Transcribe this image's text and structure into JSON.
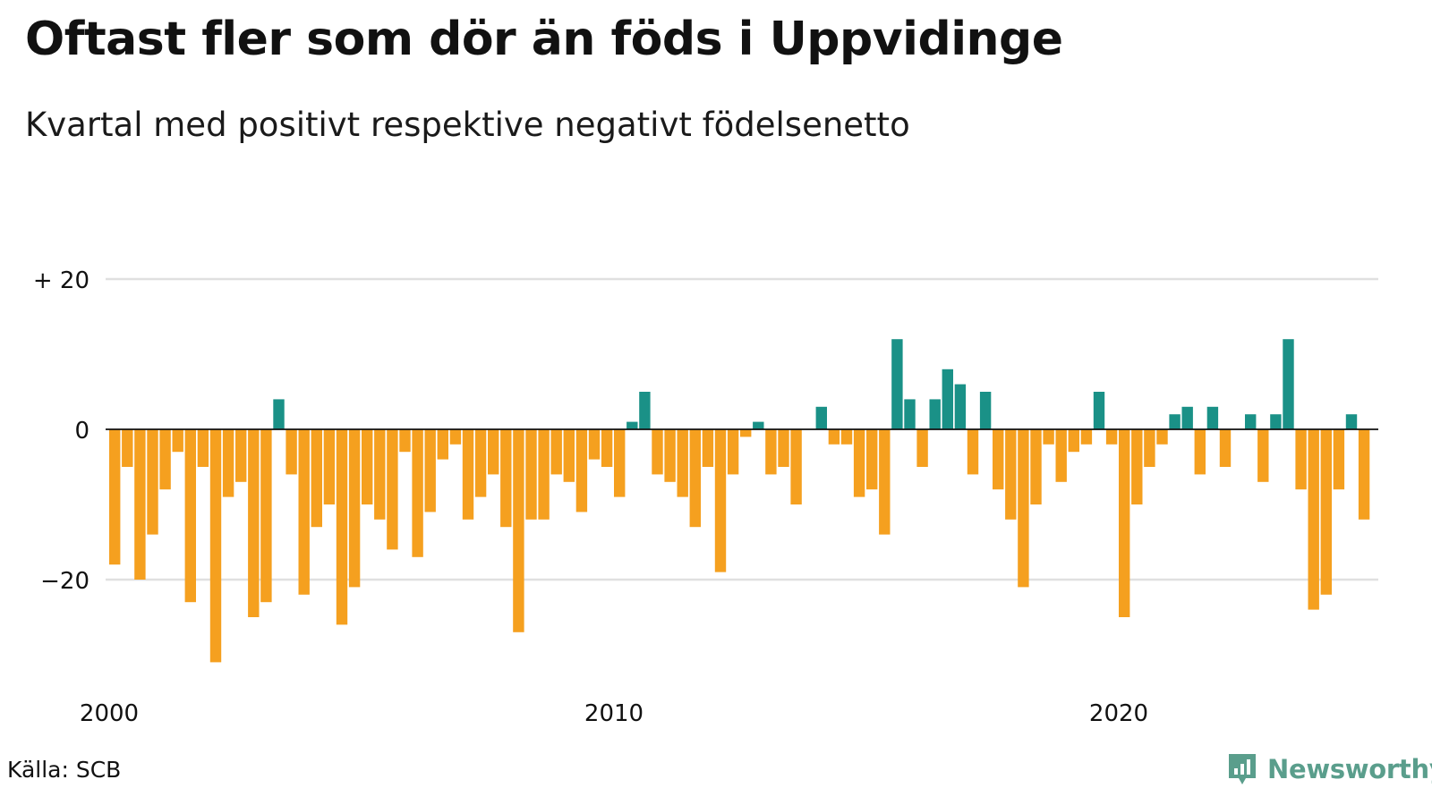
{
  "title": "Oftast fler som dör än föds i Uppvidinge",
  "subtitle": "Kvartal med positivt respektive negativt födelsenetto",
  "source": "Källa: SCB",
  "brand": "Newsworthy",
  "colors": {
    "positive": "#1a9187",
    "negative": "#f5a01f",
    "grid": "#e0e0e0",
    "zero": "#111111",
    "brand": "#5a9e8c"
  },
  "chart_data": {
    "type": "bar",
    "title": "Oftast fler som dör än föds i Uppvidinge",
    "subtitle": "Kvartal med positivt respektive negativt födelsenetto",
    "xlabel": "",
    "ylabel": "",
    "ylim": [
      -35,
      25
    ],
    "grid": true,
    "y_ticks": [
      {
        "value": 20,
        "label": "+ 20"
      },
      {
        "value": 0,
        "label": "0"
      },
      {
        "value": -20,
        "label": "−20"
      }
    ],
    "x_ticks": [
      {
        "value": 2000,
        "label": "2000"
      },
      {
        "value": 2010,
        "label": "2010"
      },
      {
        "value": 2020,
        "label": "2020"
      }
    ],
    "x_start": 2000,
    "periods_per_year": 4,
    "values": [
      -18,
      -5,
      -20,
      -14,
      -8,
      -3,
      -23,
      -5,
      -31,
      -9,
      -7,
      -25,
      -23,
      4,
      -6,
      -22,
      -13,
      -10,
      -26,
      -21,
      -10,
      -12,
      -16,
      -3,
      -17,
      -11,
      -4,
      -2,
      -12,
      -9,
      -6,
      -13,
      -27,
      -12,
      -12,
      -6,
      -7,
      -11,
      -4,
      -5,
      -9,
      1,
      5,
      -6,
      -7,
      -9,
      -13,
      -5,
      -19,
      -6,
      -1,
      1,
      -6,
      -5,
      -10,
      0,
      3,
      -2,
      -2,
      -9,
      -8,
      -14,
      12,
      4,
      -5,
      4,
      8,
      6,
      -6,
      5,
      -8,
      -12,
      -21,
      -10,
      -2,
      -7,
      -3,
      -2,
      5,
      -2,
      -25,
      -10,
      -5,
      -2,
      2,
      3,
      -6,
      3,
      -5,
      0,
      2,
      -7,
      2,
      12,
      -8,
      -24,
      -22,
      -8,
      2,
      -12
    ]
  }
}
